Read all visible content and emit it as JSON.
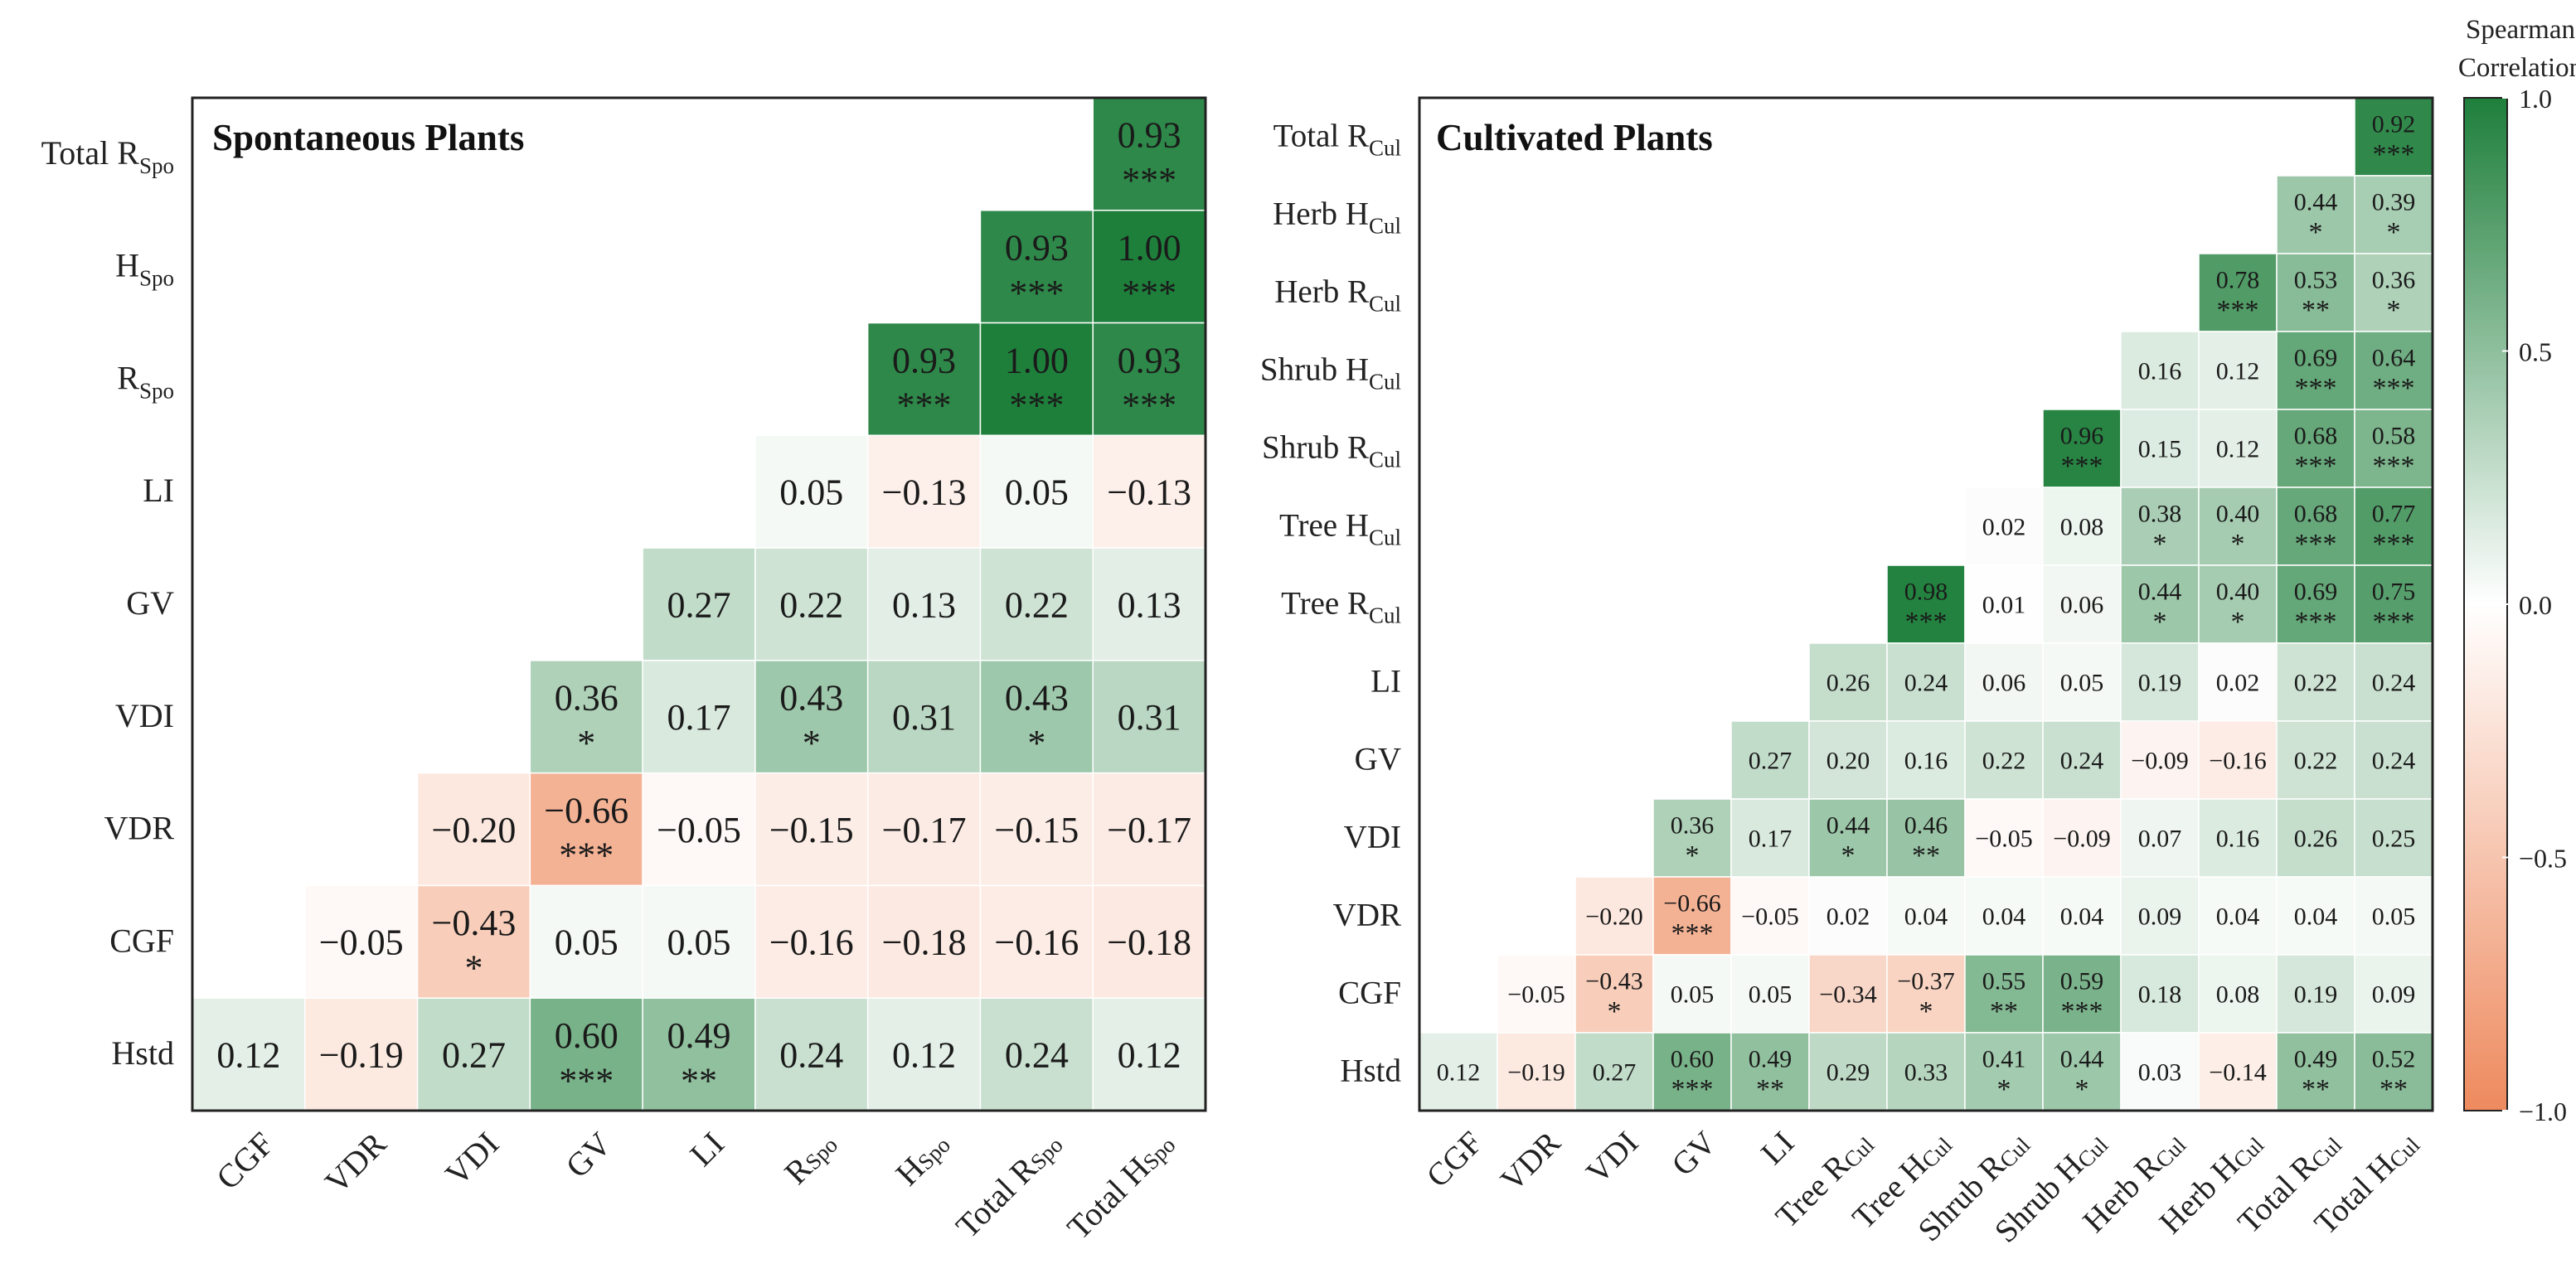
{
  "chart_data": [
    {
      "type": "heatmap",
      "title": "Spontaneous Plants",
      "colorscale": {
        "neg": "#EE8A5E",
        "zero": "#FFFFFF",
        "pos": "#1E7F3B"
      },
      "x_labels": [
        {
          "main": "CGF",
          "sub": ""
        },
        {
          "main": "VDR",
          "sub": ""
        },
        {
          "main": "VDI",
          "sub": ""
        },
        {
          "main": "GV",
          "sub": ""
        },
        {
          "main": "LI",
          "sub": ""
        },
        {
          "main": "R",
          "sub": "Spo"
        },
        {
          "main": "H",
          "sub": "Spo"
        },
        {
          "main": "Total R",
          "sub": "Spo"
        },
        {
          "main": "Total H",
          "sub": "Spo"
        }
      ],
      "y_labels": [
        {
          "main": "Total R",
          "sub": "Spo"
        },
        {
          "main": "H",
          "sub": "Spo"
        },
        {
          "main": "R",
          "sub": "Spo"
        },
        {
          "main": "LI",
          "sub": ""
        },
        {
          "main": "GV",
          "sub": ""
        },
        {
          "main": "VDI",
          "sub": ""
        },
        {
          "main": "VDR",
          "sub": ""
        },
        {
          "main": "CGF",
          "sub": ""
        },
        {
          "main": "Hstd",
          "sub": ""
        }
      ],
      "cells": [
        [
          null,
          null,
          null,
          null,
          null,
          null,
          null,
          null,
          [
            0.93,
            "***"
          ]
        ],
        [
          null,
          null,
          null,
          null,
          null,
          null,
          null,
          [
            0.93,
            "***"
          ],
          [
            1.0,
            "***"
          ]
        ],
        [
          null,
          null,
          null,
          null,
          null,
          null,
          [
            0.93,
            "***"
          ],
          [
            1.0,
            "***"
          ],
          [
            0.93,
            "***"
          ]
        ],
        [
          null,
          null,
          null,
          null,
          null,
          [
            0.05,
            ""
          ],
          [
            -0.13,
            ""
          ],
          [
            0.05,
            ""
          ],
          [
            -0.13,
            ""
          ]
        ],
        [
          null,
          null,
          null,
          null,
          [
            0.27,
            ""
          ],
          [
            0.22,
            ""
          ],
          [
            0.13,
            ""
          ],
          [
            0.22,
            ""
          ],
          [
            0.13,
            ""
          ]
        ],
        [
          null,
          null,
          null,
          [
            0.36,
            "*"
          ],
          [
            0.17,
            ""
          ],
          [
            0.43,
            "*"
          ],
          [
            0.31,
            ""
          ],
          [
            0.43,
            "*"
          ],
          [
            0.31,
            ""
          ]
        ],
        [
          null,
          null,
          [
            -0.2,
            ""
          ],
          [
            -0.66,
            "***"
          ],
          [
            -0.05,
            ""
          ],
          [
            -0.15,
            ""
          ],
          [
            -0.17,
            ""
          ],
          [
            -0.15,
            ""
          ],
          [
            -0.17,
            ""
          ]
        ],
        [
          null,
          [
            -0.05,
            ""
          ],
          [
            -0.43,
            "*"
          ],
          [
            0.05,
            ""
          ],
          [
            0.05,
            ""
          ],
          [
            -0.16,
            ""
          ],
          [
            -0.18,
            ""
          ],
          [
            -0.16,
            ""
          ],
          [
            -0.18,
            ""
          ]
        ],
        [
          [
            0.12,
            ""
          ],
          [
            -0.19,
            ""
          ],
          [
            0.27,
            ""
          ],
          [
            0.6,
            "***"
          ],
          [
            0.49,
            "**"
          ],
          [
            0.24,
            ""
          ],
          [
            0.12,
            ""
          ],
          [
            0.24,
            ""
          ],
          [
            0.12,
            ""
          ]
        ]
      ]
    },
    {
      "type": "heatmap",
      "title": "Cultivated Plants",
      "colorscale": {
        "neg": "#EE8A5E",
        "zero": "#FFFFFF",
        "pos": "#1E7F3B"
      },
      "x_labels": [
        {
          "main": "CGF",
          "sub": ""
        },
        {
          "main": "VDR",
          "sub": ""
        },
        {
          "main": "VDI",
          "sub": ""
        },
        {
          "main": "GV",
          "sub": ""
        },
        {
          "main": "LI",
          "sub": ""
        },
        {
          "main": "Tree R",
          "sub": "Cul"
        },
        {
          "main": "Tree H",
          "sub": "Cul"
        },
        {
          "main": "Shrub R",
          "sub": "Cul"
        },
        {
          "main": "Shrub H",
          "sub": "Cul"
        },
        {
          "main": "Herb R",
          "sub": "Cul"
        },
        {
          "main": "Herb H",
          "sub": "Cul"
        },
        {
          "main": "Total R",
          "sub": "Cul"
        },
        {
          "main": "Total H",
          "sub": "Cul"
        }
      ],
      "y_labels": [
        {
          "main": "Total R",
          "sub": "Cul"
        },
        {
          "main": "Herb H",
          "sub": "Cul"
        },
        {
          "main": "Herb R",
          "sub": "Cul"
        },
        {
          "main": "Shrub H",
          "sub": "Cul"
        },
        {
          "main": "Shrub R",
          "sub": "Cul"
        },
        {
          "main": "Tree H",
          "sub": "Cul"
        },
        {
          "main": "Tree R",
          "sub": "Cul"
        },
        {
          "main": "LI",
          "sub": ""
        },
        {
          "main": "GV",
          "sub": ""
        },
        {
          "main": "VDI",
          "sub": ""
        },
        {
          "main": "VDR",
          "sub": ""
        },
        {
          "main": "CGF",
          "sub": ""
        },
        {
          "main": "Hstd",
          "sub": ""
        }
      ],
      "cells": [
        [
          null,
          null,
          null,
          null,
          null,
          null,
          null,
          null,
          null,
          null,
          null,
          null,
          [
            0.92,
            "***"
          ]
        ],
        [
          null,
          null,
          null,
          null,
          null,
          null,
          null,
          null,
          null,
          null,
          null,
          [
            0.44,
            "*"
          ],
          [
            0.39,
            "*"
          ]
        ],
        [
          null,
          null,
          null,
          null,
          null,
          null,
          null,
          null,
          null,
          null,
          [
            0.78,
            "***"
          ],
          [
            0.53,
            "**"
          ],
          [
            0.36,
            "*"
          ]
        ],
        [
          null,
          null,
          null,
          null,
          null,
          null,
          null,
          null,
          null,
          [
            0.16,
            ""
          ],
          [
            0.12,
            ""
          ],
          [
            0.69,
            "***"
          ],
          [
            0.64,
            "***"
          ]
        ],
        [
          null,
          null,
          null,
          null,
          null,
          null,
          null,
          null,
          [
            0.96,
            "***"
          ],
          [
            0.15,
            ""
          ],
          [
            0.12,
            ""
          ],
          [
            0.68,
            "***"
          ],
          [
            0.58,
            "***"
          ]
        ],
        [
          null,
          null,
          null,
          null,
          null,
          null,
          null,
          [
            0.02,
            ""
          ],
          [
            0.08,
            ""
          ],
          [
            0.38,
            "*"
          ],
          [
            0.4,
            "*"
          ],
          [
            0.68,
            "***"
          ],
          [
            0.77,
            "***"
          ]
        ],
        [
          null,
          null,
          null,
          null,
          null,
          null,
          [
            0.98,
            "***"
          ],
          [
            0.01,
            ""
          ],
          [
            0.06,
            ""
          ],
          [
            0.44,
            "*"
          ],
          [
            0.4,
            "*"
          ],
          [
            0.69,
            "***"
          ],
          [
            0.75,
            "***"
          ]
        ],
        [
          null,
          null,
          null,
          null,
          null,
          [
            0.26,
            ""
          ],
          [
            0.24,
            ""
          ],
          [
            0.06,
            ""
          ],
          [
            0.05,
            ""
          ],
          [
            0.19,
            ""
          ],
          [
            0.02,
            ""
          ],
          [
            0.22,
            ""
          ],
          [
            0.24,
            ""
          ]
        ],
        [
          null,
          null,
          null,
          null,
          [
            0.27,
            ""
          ],
          [
            0.2,
            ""
          ],
          [
            0.16,
            ""
          ],
          [
            0.22,
            ""
          ],
          [
            0.24,
            ""
          ],
          [
            -0.09,
            ""
          ],
          [
            -0.16,
            ""
          ],
          [
            0.22,
            ""
          ],
          [
            0.24,
            ""
          ]
        ],
        [
          null,
          null,
          null,
          [
            0.36,
            "*"
          ],
          [
            0.17,
            ""
          ],
          [
            0.44,
            "*"
          ],
          [
            0.46,
            "**"
          ],
          [
            -0.05,
            ""
          ],
          [
            -0.09,
            ""
          ],
          [
            0.07,
            ""
          ],
          [
            0.16,
            ""
          ],
          [
            0.26,
            ""
          ],
          [
            0.25,
            ""
          ]
        ],
        [
          null,
          null,
          [
            -0.2,
            ""
          ],
          [
            -0.66,
            "***"
          ],
          [
            -0.05,
            ""
          ],
          [
            0.02,
            ""
          ],
          [
            0.04,
            ""
          ],
          [
            0.04,
            ""
          ],
          [
            0.04,
            ""
          ],
          [
            0.09,
            ""
          ],
          [
            0.04,
            ""
          ],
          [
            0.04,
            ""
          ],
          [
            0.05,
            ""
          ]
        ],
        [
          null,
          [
            -0.05,
            ""
          ],
          [
            -0.43,
            "*"
          ],
          [
            0.05,
            ""
          ],
          [
            0.05,
            ""
          ],
          [
            -0.34,
            ""
          ],
          [
            -0.37,
            "*"
          ],
          [
            0.55,
            "**"
          ],
          [
            0.59,
            "***"
          ],
          [
            0.18,
            ""
          ],
          [
            0.08,
            ""
          ],
          [
            0.19,
            ""
          ],
          [
            0.09,
            ""
          ]
        ],
        [
          [
            0.12,
            ""
          ],
          [
            -0.19,
            ""
          ],
          [
            0.27,
            ""
          ],
          [
            0.6,
            "***"
          ],
          [
            0.49,
            "**"
          ],
          [
            0.29,
            ""
          ],
          [
            0.33,
            ""
          ],
          [
            0.41,
            "*"
          ],
          [
            0.44,
            "*"
          ],
          [
            0.03,
            ""
          ],
          [
            -0.14,
            ""
          ],
          [
            0.49,
            "**"
          ],
          [
            0.52,
            "**"
          ]
        ]
      ]
    }
  ],
  "colorbar": {
    "title_lines": [
      "Spearman",
      "Correlation"
    ],
    "ticks": [
      1.0,
      0.5,
      0.0,
      -0.5,
      -1.0
    ],
    "tick_labels": [
      "1.0",
      "0.5",
      "0.0",
      "−0.5",
      "−1.0"
    ],
    "range": [
      -1.0,
      1.0
    ]
  }
}
